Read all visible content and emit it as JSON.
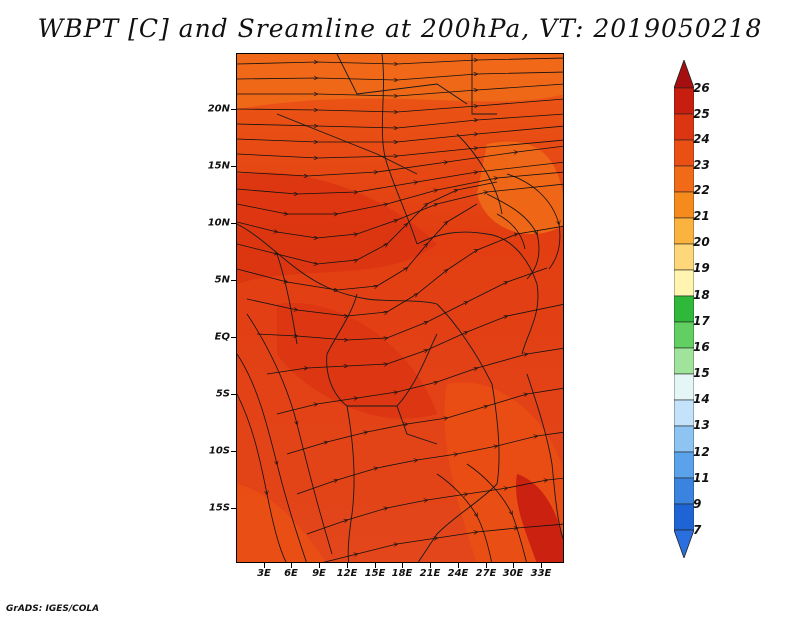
{
  "title": "WBPT [C] and Sreamline at 200hPa, VT: 2019050218",
  "footer": "GrADS: IGES/COLA",
  "map": {
    "lat_labels": [
      "20N",
      "15N",
      "10N",
      "5N",
      "EQ",
      "5S",
      "10S",
      "15S"
    ],
    "lat_values": [
      20,
      15,
      10,
      5,
      0,
      -5,
      -10,
      -15
    ],
    "lon_labels": [
      "3E",
      "6E",
      "9E",
      "12E",
      "15E",
      "18E",
      "21E",
      "24E",
      "27E",
      "30E",
      "33E"
    ],
    "lon_values": [
      3,
      6,
      9,
      12,
      15,
      18,
      21,
      24,
      27,
      30,
      33
    ],
    "lat_range": [
      -20,
      24.5
    ],
    "lon_range": [
      0,
      35.5
    ]
  },
  "colorbar": {
    "labels": [
      "26",
      "25",
      "24",
      "23",
      "22",
      "21",
      "20",
      "19",
      "18",
      "17",
      "16",
      "15",
      "14",
      "13",
      "12",
      "11",
      "9",
      "7"
    ],
    "colors": [
      "#a50f0f",
      "#c81e10",
      "#dc3512",
      "#ea4f14",
      "#f06a18",
      "#f58b1c",
      "#fbb340",
      "#fdd77a",
      "#fff4b0",
      "#2fb83a",
      "#62cf63",
      "#a0e39a",
      "#e4f7f6",
      "#c4e3fa",
      "#8dc4f2",
      "#5aa2ea",
      "#3a84e0",
      "#1f64d4",
      "#2a6fe0"
    ]
  }
}
